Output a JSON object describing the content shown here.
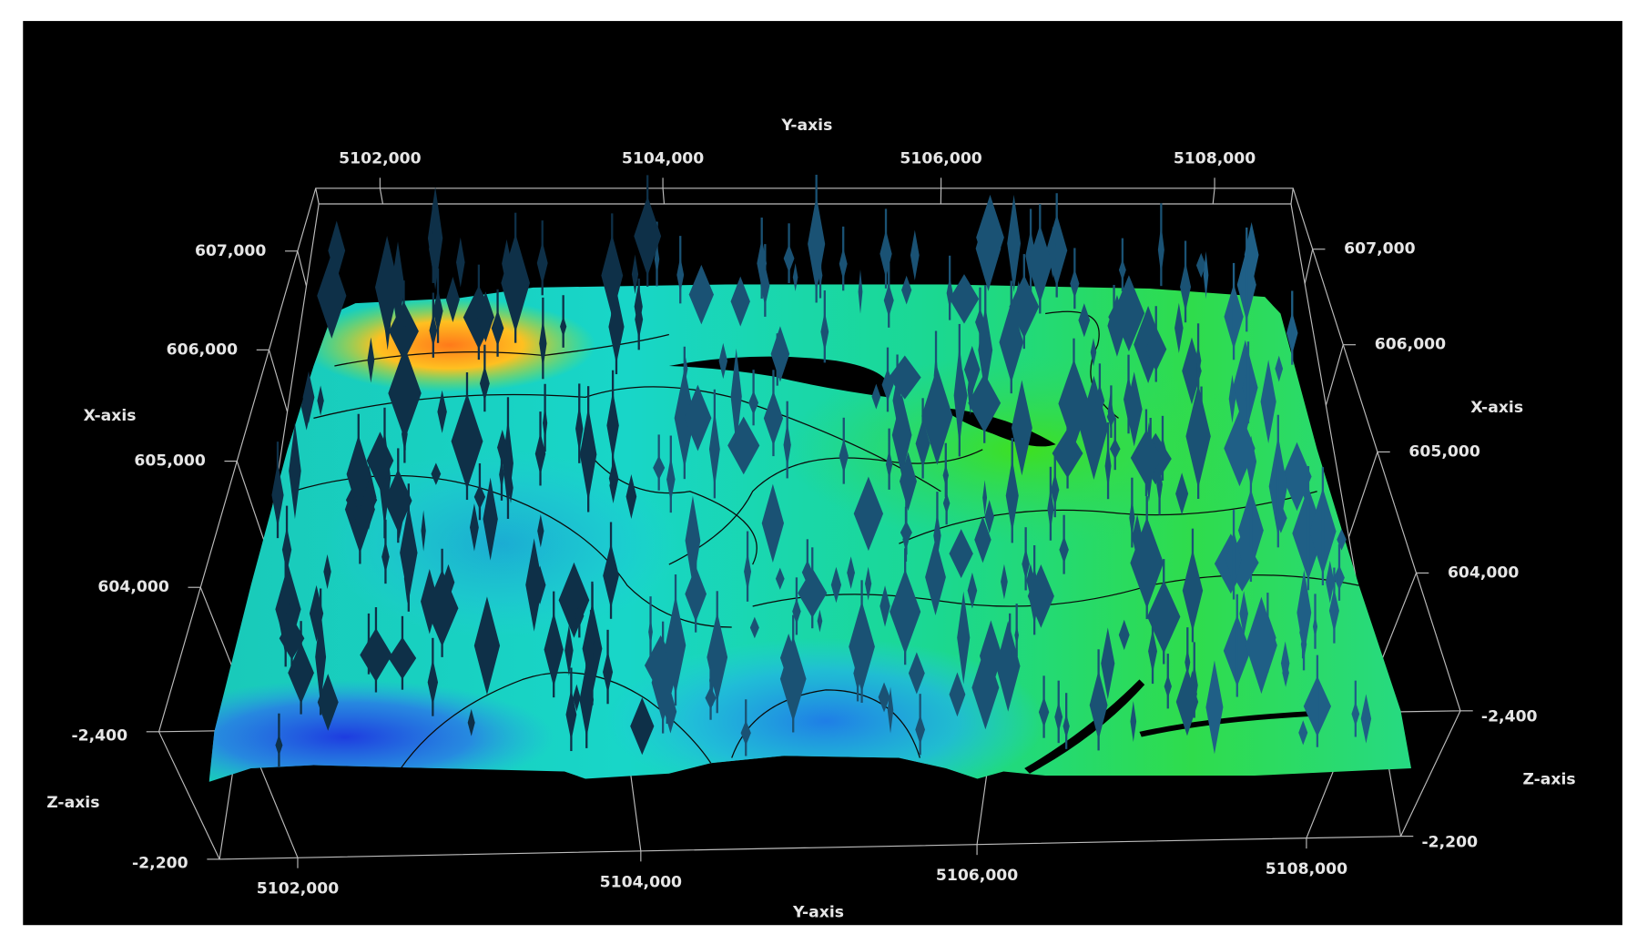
{
  "chart_data": {
    "type": "surface3d",
    "axis_labels": {
      "x": "X-axis",
      "y": "Y-axis",
      "z": "Z-axis"
    },
    "xlim": [
      603000,
      607700
    ],
    "xticks": [
      {
        "value": 604000,
        "label": "604,000"
      },
      {
        "value": 605000,
        "label": "605,000"
      },
      {
        "value": 606000,
        "label": "606,000"
      },
      {
        "value": 607000,
        "label": "607,000"
      }
    ],
    "ylim": [
      5101550,
      5108580
    ],
    "yticks": [
      {
        "value": 5102000,
        "label": "5102,000"
      },
      {
        "value": 5104000,
        "label": "5104,000"
      },
      {
        "value": 5106000,
        "label": "5106,000"
      },
      {
        "value": 5108000,
        "label": "5108,000"
      }
    ],
    "zlim": [
      -2400,
      -2200
    ],
    "zticks": [
      {
        "value": -2400,
        "label": "-2,400"
      },
      {
        "value": -2200,
        "label": "-2,200"
      }
    ],
    "grid": true
  }
}
